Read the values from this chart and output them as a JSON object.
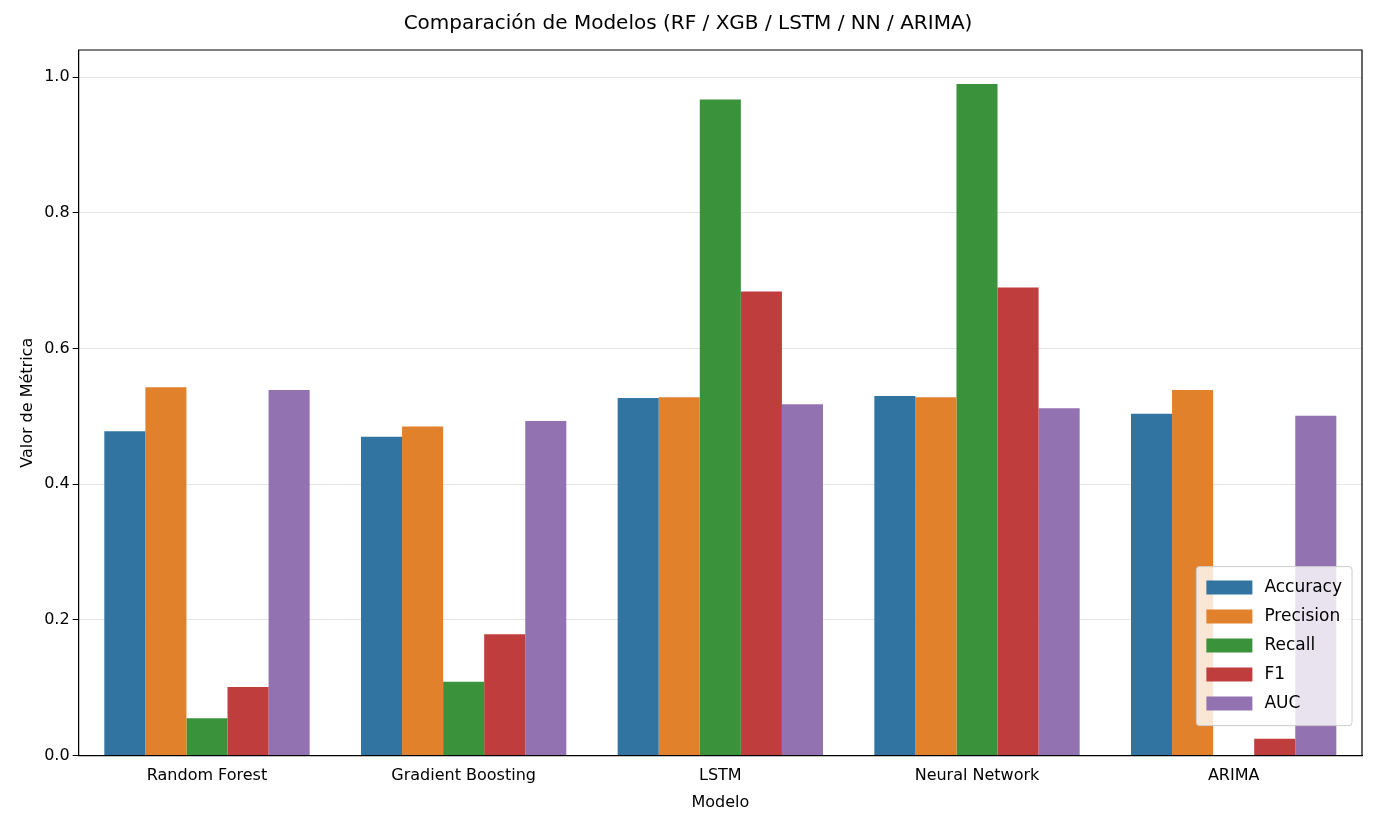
{
  "chart_data": {
    "type": "bar",
    "title": "Comparación de Modelos (RF / XGB / LSTM / NN / ARIMA)",
    "xlabel": "Modelo",
    "ylabel": "Valor de Métrica",
    "categories": [
      "Random Forest",
      "Gradient Boosting",
      "LSTM",
      "Neural Network",
      "ARIMA"
    ],
    "series": [
      {
        "name": "Accuracy",
        "color": "#3274a1",
        "values": [
          0.478,
          0.47,
          0.527,
          0.53,
          0.504
        ]
      },
      {
        "name": "Precision",
        "color": "#e1812c",
        "values": [
          0.543,
          0.485,
          0.528,
          0.528,
          0.539
        ]
      },
      {
        "name": "Recall",
        "color": "#3a923a",
        "values": [
          0.055,
          0.109,
          0.967,
          0.99,
          null
        ]
      },
      {
        "name": "F1",
        "color": "#c03d3e",
        "values": [
          0.101,
          0.179,
          0.684,
          0.69,
          0.025
        ]
      },
      {
        "name": "AUC",
        "color": "#9372b2",
        "values": [
          0.539,
          0.493,
          0.518,
          0.512,
          0.501
        ]
      }
    ],
    "ylim": [
      0,
      1.04
    ],
    "yticks": [
      {
        "value": 0,
        "label": "0.0"
      },
      {
        "value": 0.2,
        "label": "0.2"
      },
      {
        "value": 0.4,
        "label": "0.4"
      },
      {
        "value": 0.6,
        "label": "0.6"
      },
      {
        "value": 0.8,
        "label": "0.8"
      },
      {
        "value": 1,
        "label": "1.0"
      }
    ],
    "grid": "y",
    "legend": "bottom right"
  }
}
